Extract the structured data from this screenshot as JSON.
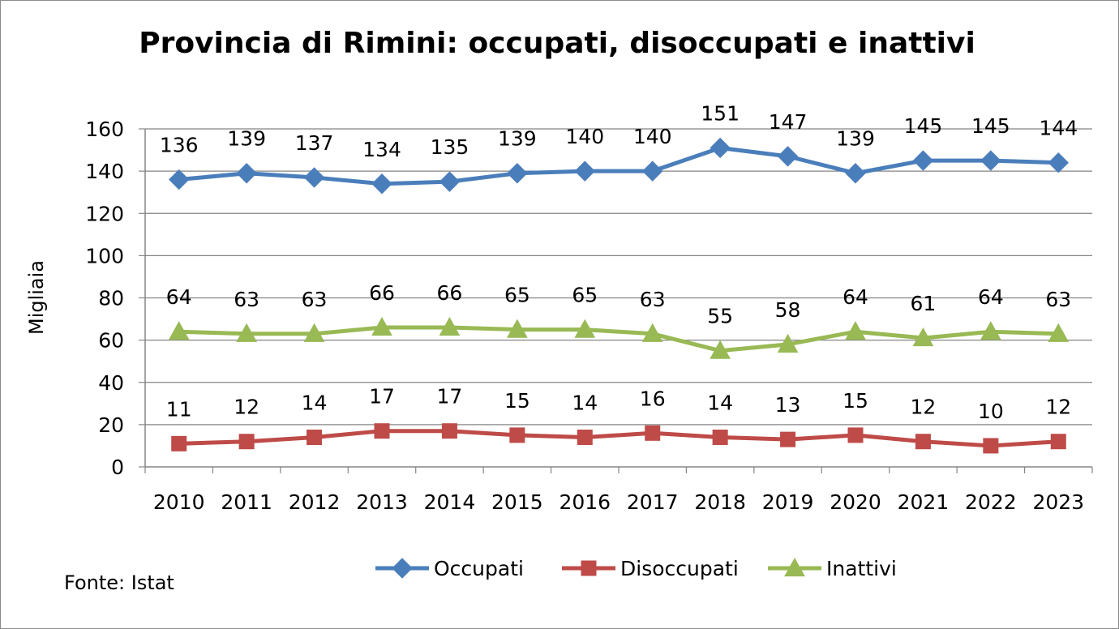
{
  "chart_data": {
    "type": "line",
    "title": "Provincia di Rimini: occupati, disoccupati e inattivi",
    "xlabel": "",
    "ylabel": "Migliaia",
    "ylim": [
      0,
      160
    ],
    "yticks": [
      "0",
      "20",
      "40",
      "60",
      "80",
      "100",
      "120",
      "140",
      "160"
    ],
    "grid": true,
    "legend_position": "bottom",
    "categories": [
      "2010",
      "2011",
      "2012",
      "2013",
      "2014",
      "2015",
      "2016",
      "2017",
      "2018",
      "2019",
      "2020",
      "2021",
      "2022",
      "2023"
    ],
    "series": [
      {
        "name": "Occupati",
        "color": "#4a7ebb",
        "marker": "diamond",
        "values": [
          136,
          139,
          137,
          134,
          135,
          139,
          140,
          140,
          151,
          147,
          139,
          145,
          145,
          144
        ]
      },
      {
        "name": "Disoccupati",
        "color": "#be4b48",
        "marker": "square",
        "values": [
          11,
          12,
          14,
          17,
          17,
          15,
          14,
          16,
          14,
          13,
          15,
          12,
          10,
          12
        ]
      },
      {
        "name": "Inattivi",
        "color": "#98b954",
        "marker": "triangle",
        "values": [
          64,
          63,
          63,
          66,
          66,
          65,
          65,
          63,
          55,
          58,
          64,
          61,
          64,
          63
        ]
      }
    ],
    "source": "Fonte: Istat"
  }
}
